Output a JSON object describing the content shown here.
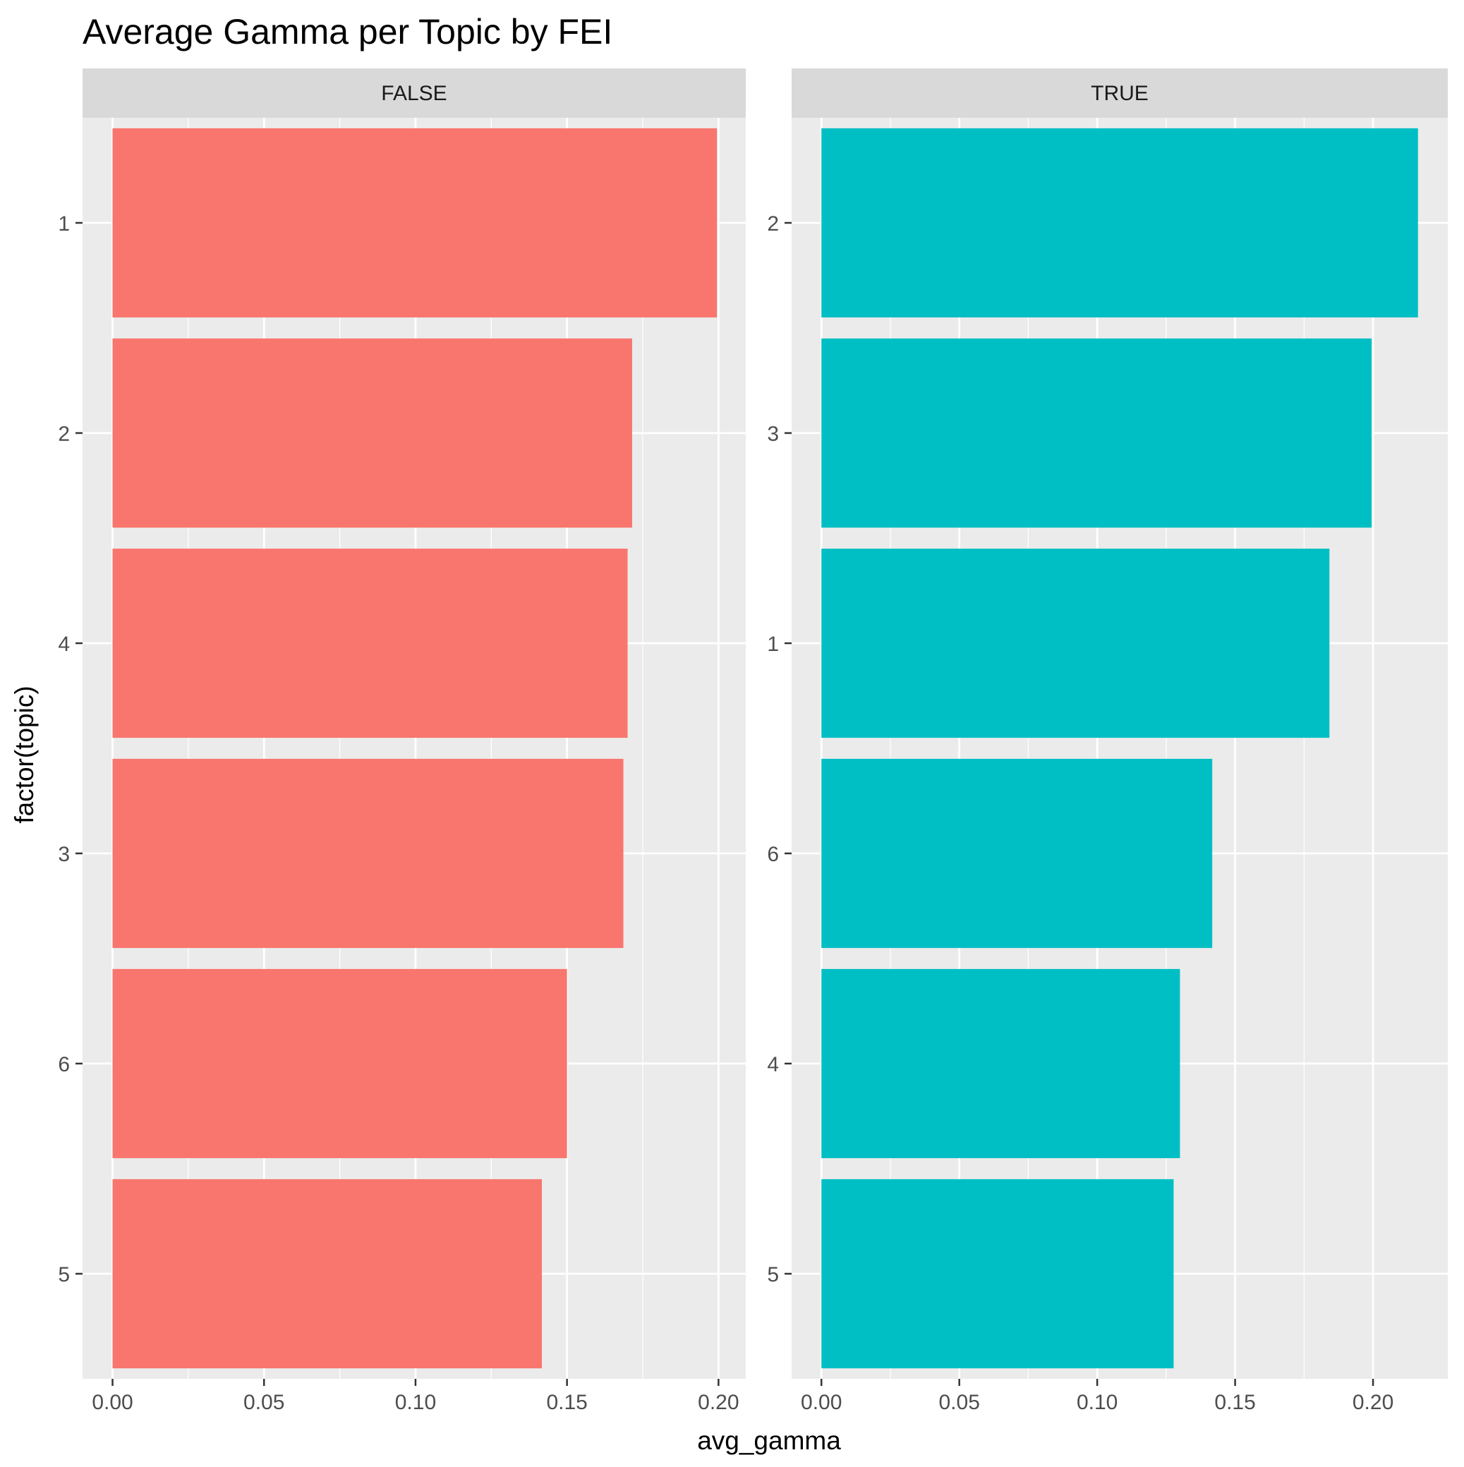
{
  "title": "Average Gamma per Topic by FEI",
  "chart_data": {
    "type": "bar",
    "orientation": "horizontal",
    "title": "Average Gamma per Topic by FEI",
    "xlabel": "avg_gamma",
    "ylabel": "factor(topic)",
    "grid": true,
    "legend": "none",
    "panels": [
      {
        "label": "FALSE",
        "color": "#F8766D",
        "xlim": [
          -0.0099,
          0.209
        ],
        "x_ticks": [
          "0.00",
          "0.05",
          "0.10",
          "0.15",
          "0.20"
        ],
        "categories": [
          "1",
          "2",
          "4",
          "3",
          "6",
          "5"
        ],
        "values": [
          0.1995,
          0.1715,
          0.17,
          0.1686,
          0.15,
          0.1417
        ]
      },
      {
        "label": "TRUE",
        "color": "#00BFC4",
        "xlim": [
          -0.0108,
          0.2271
        ],
        "x_ticks": [
          "0.00",
          "0.05",
          "0.10",
          "0.15",
          "0.20"
        ],
        "categories": [
          "2",
          "3",
          "1",
          "6",
          "4",
          "5"
        ],
        "values": [
          0.2163,
          0.1995,
          0.1842,
          0.1417,
          0.13,
          0.1277
        ]
      }
    ]
  }
}
